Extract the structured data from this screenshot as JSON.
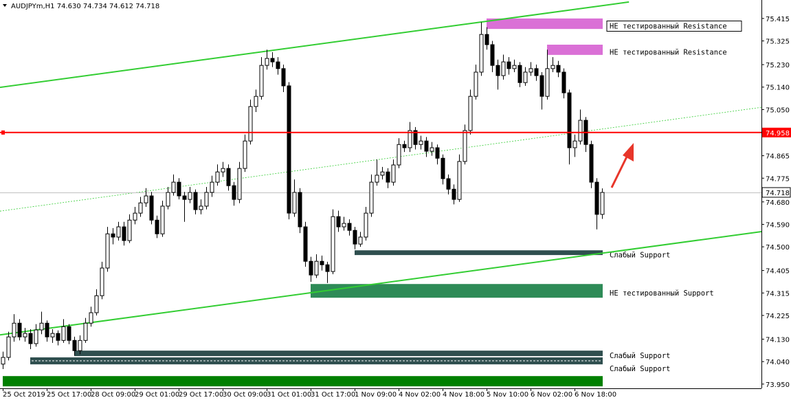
{
  "chart_data": {
    "type": "candlestick",
    "header": "AUDJPYm,H1  74.630 74.734 74.612 74.718",
    "ylim": [
      73.933,
      75.489
    ],
    "yticks": [
      75.415,
      75.325,
      {
        "value": 75.23,
        "label": "75.230"
      },
      {
        "value": 75.14,
        "label": "75.140"
      },
      {
        "value": 75.05,
        "label": "75.050"
      },
      74.865,
      74.775,
      {
        "value": 74.68,
        "label": "74.680"
      },
      {
        "value": 74.59,
        "label": "74.590"
      },
      {
        "value": 74.5,
        "label": "74.500"
      },
      74.405,
      74.315,
      74.225,
      {
        "value": 74.13,
        "label": "74.130"
      },
      {
        "value": 74.04,
        "label": "74.040"
      },
      {
        "value": 73.95,
        "label": "73.950"
      }
    ],
    "grid": false,
    "bull_color": "#ffffff",
    "bear_color": "#000000",
    "categories": [
      "25 Oct 2019",
      null,
      null,
      null,
      null,
      null,
      null,
      null,
      "25 Oct 17:00",
      null,
      null,
      null,
      null,
      null,
      null,
      null,
      "28 Oct 09:00",
      null,
      null,
      null,
      null,
      null,
      null,
      null,
      "29 Oct 01:00",
      null,
      null,
      null,
      null,
      null,
      null,
      null,
      "29 Oct 17:00",
      null,
      null,
      null,
      null,
      null,
      null,
      null,
      "30 Oct 09:00",
      null,
      null,
      null,
      null,
      null,
      null,
      null,
      "31 Oct 01:00",
      null,
      null,
      null,
      null,
      null,
      null,
      null,
      "31 Oct 17:00",
      null,
      null,
      null,
      null,
      null,
      null,
      null,
      "1 Nov 09:00",
      null,
      null,
      null,
      null,
      null,
      null,
      null,
      "4 Nov 02:00",
      null,
      null,
      null,
      null,
      null,
      null,
      null,
      "4 Nov 18:00",
      null,
      null,
      null,
      null,
      null,
      null,
      null,
      "5 Nov 10:00",
      null,
      null,
      null,
      null,
      null,
      null,
      null,
      "6 Nov 02:00",
      null,
      null,
      null,
      null,
      null,
      null,
      null,
      "6 Nov 18:00",
      null,
      null,
      null,
      null,
      null
    ],
    "candles": [
      [
        74.03,
        74.08,
        74.01,
        74.057
      ],
      [
        74.057,
        74.16,
        74.045,
        74.139
      ],
      [
        74.139,
        74.23,
        74.12,
        74.194
      ],
      [
        74.194,
        74.21,
        74.125,
        74.139
      ],
      [
        74.139,
        74.175,
        74.12,
        74.153
      ],
      [
        74.153,
        74.17,
        74.09,
        74.112
      ],
      [
        74.112,
        74.19,
        74.1,
        74.167
      ],
      [
        74.167,
        74.24,
        74.15,
        74.194
      ],
      [
        74.194,
        74.205,
        74.12,
        74.139
      ],
      [
        74.139,
        74.17,
        74.115,
        74.153
      ],
      [
        74.153,
        74.165,
        74.105,
        74.125
      ],
      [
        74.125,
        74.21,
        74.115,
        74.18
      ],
      [
        74.18,
        74.19,
        74.11,
        74.125
      ],
      [
        74.125,
        74.14,
        74.065,
        74.084
      ],
      [
        74.084,
        74.145,
        74.07,
        74.125
      ],
      [
        74.125,
        74.215,
        74.115,
        74.194
      ],
      [
        74.194,
        74.26,
        74.18,
        74.236
      ],
      [
        74.236,
        74.33,
        74.225,
        74.304
      ],
      [
        74.304,
        74.44,
        74.29,
        74.415
      ],
      [
        74.415,
        74.58,
        74.4,
        74.552
      ],
      [
        74.552,
        74.575,
        74.51,
        74.539
      ],
      [
        74.539,
        74.6,
        74.525,
        74.58
      ],
      [
        74.58,
        74.6,
        74.505,
        74.525
      ],
      [
        74.525,
        74.63,
        74.515,
        74.607
      ],
      [
        74.607,
        74.66,
        74.59,
        74.635
      ],
      [
        74.635,
        74.7,
        74.62,
        74.676
      ],
      [
        74.676,
        74.735,
        74.66,
        74.704
      ],
      [
        74.704,
        74.72,
        74.59,
        74.607
      ],
      [
        74.607,
        74.625,
        74.535,
        74.552
      ],
      [
        74.552,
        74.685,
        74.54,
        74.663
      ],
      [
        74.663,
        74.74,
        74.65,
        74.718
      ],
      [
        74.718,
        74.79,
        74.705,
        74.759
      ],
      [
        74.759,
        74.775,
        74.69,
        74.704
      ],
      [
        74.704,
        74.72,
        74.6,
        74.69
      ],
      [
        74.69,
        74.74,
        74.675,
        74.718
      ],
      [
        74.718,
        74.73,
        74.63,
        74.649
      ],
      [
        74.649,
        74.69,
        74.63,
        74.663
      ],
      [
        74.663,
        74.74,
        74.65,
        74.718
      ],
      [
        74.718,
        74.785,
        74.7,
        74.759
      ],
      [
        74.759,
        74.83,
        74.745,
        74.8
      ],
      [
        74.8,
        74.84,
        74.78,
        74.814
      ],
      [
        74.814,
        74.83,
        74.725,
        74.745
      ],
      [
        74.745,
        74.76,
        74.665,
        74.69
      ],
      [
        74.69,
        74.84,
        74.675,
        74.814
      ],
      [
        74.814,
        74.95,
        74.8,
        74.924
      ],
      [
        74.924,
        75.09,
        74.91,
        75.062
      ],
      [
        75.062,
        75.13,
        75.04,
        75.103
      ],
      [
        75.103,
        75.26,
        75.09,
        75.227
      ],
      [
        75.227,
        75.29,
        75.21,
        75.255
      ],
      [
        75.255,
        75.28,
        75.22,
        75.241
      ],
      [
        75.241,
        75.26,
        75.19,
        75.214
      ],
      [
        75.214,
        75.23,
        75.12,
        75.145
      ],
      [
        75.145,
        75.16,
        74.61,
        74.635
      ],
      [
        74.635,
        74.77,
        74.62,
        74.718
      ],
      [
        74.718,
        74.735,
        74.555,
        74.58
      ],
      [
        74.58,
        74.6,
        74.42,
        74.442
      ],
      [
        74.442,
        74.46,
        74.36,
        74.387
      ],
      [
        74.387,
        74.47,
        74.375,
        74.442
      ],
      [
        74.442,
        74.465,
        74.405,
        74.428
      ],
      [
        74.428,
        74.44,
        74.355,
        74.401
      ],
      [
        74.401,
        74.65,
        74.39,
        74.621
      ],
      [
        74.621,
        74.645,
        74.56,
        74.58
      ],
      [
        74.58,
        74.62,
        74.565,
        74.594
      ],
      [
        74.594,
        74.61,
        74.545,
        74.566
      ],
      [
        74.566,
        74.58,
        74.49,
        74.511
      ],
      [
        74.511,
        74.56,
        74.5,
        74.539
      ],
      [
        74.539,
        74.66,
        74.525,
        74.635
      ],
      [
        74.635,
        74.79,
        74.62,
        74.759
      ],
      [
        74.759,
        74.85,
        74.745,
        74.787
      ],
      [
        74.787,
        74.82,
        74.77,
        74.8
      ],
      [
        74.8,
        74.815,
        74.735,
        74.759
      ],
      [
        74.759,
        74.85,
        74.745,
        74.828
      ],
      [
        74.828,
        74.935,
        74.815,
        74.91
      ],
      [
        74.91,
        74.925,
        74.88,
        74.897
      ],
      [
        74.897,
        75.0,
        74.88,
        74.966
      ],
      [
        74.966,
        74.98,
        74.89,
        74.91
      ],
      [
        74.91,
        74.945,
        74.89,
        74.924
      ],
      [
        74.924,
        74.94,
        74.86,
        74.883
      ],
      [
        74.883,
        74.92,
        74.865,
        74.897
      ],
      [
        74.897,
        74.91,
        74.83,
        74.855
      ],
      [
        74.855,
        74.87,
        74.75,
        74.773
      ],
      [
        74.773,
        74.79,
        74.71,
        74.731
      ],
      [
        74.731,
        74.75,
        74.67,
        74.69
      ],
      [
        74.69,
        74.87,
        74.68,
        74.842
      ],
      [
        74.842,
        74.99,
        74.83,
        74.966
      ],
      [
        74.966,
        75.13,
        74.95,
        75.103
      ],
      [
        75.103,
        75.23,
        75.09,
        75.2
      ],
      [
        75.2,
        75.4,
        75.185,
        75.351
      ],
      [
        75.351,
        75.38,
        75.29,
        75.31
      ],
      [
        75.31,
        75.325,
        75.2,
        75.227
      ],
      [
        75.227,
        75.25,
        75.13,
        75.186
      ],
      [
        75.186,
        75.27,
        75.17,
        75.241
      ],
      [
        75.241,
        75.26,
        75.19,
        75.214
      ],
      [
        75.214,
        75.25,
        75.2,
        75.227
      ],
      [
        75.227,
        75.24,
        75.14,
        75.158
      ],
      [
        75.158,
        75.22,
        75.145,
        75.2
      ],
      [
        75.2,
        75.24,
        75.185,
        75.214
      ],
      [
        75.214,
        75.23,
        75.165,
        75.186
      ],
      [
        75.186,
        75.2,
        75.05,
        75.103
      ],
      [
        75.103,
        75.29,
        75.09,
        75.214
      ],
      [
        75.214,
        75.26,
        75.2,
        75.227
      ],
      [
        75.227,
        75.245,
        75.18,
        75.2
      ],
      [
        75.2,
        75.215,
        75.095,
        75.117
      ],
      [
        75.117,
        75.13,
        74.83,
        74.897
      ],
      [
        74.897,
        74.95,
        74.86,
        74.924
      ],
      [
        74.924,
        75.05,
        74.91,
        75.007
      ],
      [
        75.007,
        75.02,
        74.88,
        74.91
      ],
      [
        74.91,
        74.925,
        74.735,
        74.759
      ],
      [
        74.759,
        74.775,
        74.57,
        74.63
      ],
      [
        74.63,
        74.734,
        74.612,
        74.718
      ]
    ],
    "zones": [
      {
        "label": "НЕ тестированный Resistance",
        "top": 75.415,
        "bottom": 75.373,
        "start": 88,
        "color": "#da70d6",
        "boxed": true
      },
      {
        "label": "НЕ тестированный Resistance",
        "top": 75.31,
        "bottom": 75.269,
        "start": 99,
        "color": "#da70d6"
      },
      {
        "label": "Слабый Support",
        "top": 74.486,
        "bottom": 74.467,
        "start": 64,
        "color": "#2f4f4f"
      },
      {
        "label": "НЕ тестированный Support",
        "top": 74.351,
        "bottom": 74.296,
        "start": 56,
        "color": "#2e8b57"
      },
      {
        "label": "Слабый Support",
        "top": 74.084,
        "bottom": 74.062,
        "start": 13,
        "color": "#2f4f4f"
      },
      {
        "label": "Слабый Support",
        "top": 74.057,
        "bottom": 74.029,
        "start": 5,
        "color": "#2f4f4f"
      },
      {
        "top": 73.982,
        "bottom": 73.941,
        "start": 0,
        "color": "#008000"
      }
    ],
    "trendlines": [
      {
        "from": [
          -0.5,
          75.139
        ],
        "to": [
          113.9,
          75.481
        ],
        "color": "#32cd32",
        "style": "solid"
      },
      {
        "from": [
          -0.5,
          74.147
        ],
        "to": [
          138,
          74.561
        ],
        "color": "#32cd32",
        "style": "solid"
      },
      {
        "from": [
          -0.5,
          74.643
        ],
        "to": [
          138,
          75.059
        ],
        "color": "#32cd32",
        "style": "dotted"
      }
    ],
    "levels": [
      {
        "value": 74.958,
        "color": "#ff0000"
      }
    ],
    "current_price": 74.718
  }
}
